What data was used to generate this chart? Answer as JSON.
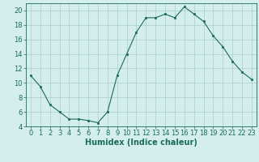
{
  "x": [
    0,
    1,
    2,
    3,
    4,
    5,
    6,
    7,
    8,
    9,
    10,
    11,
    12,
    13,
    14,
    15,
    16,
    17,
    18,
    19,
    20,
    21,
    22,
    23
  ],
  "y": [
    11,
    9.5,
    7,
    6,
    5,
    5,
    4.8,
    4.5,
    6,
    11,
    14,
    17,
    19,
    19,
    19.5,
    19,
    20.5,
    19.5,
    18.5,
    16.5,
    15,
    13,
    11.5,
    10.5
  ],
  "line_color": "#1a6b5a",
  "marker": "s",
  "marker_size": 2.0,
  "bg_color": "#d4eeee",
  "grid_color": "#aacccc",
  "xlabel": "Humidex (Indice chaleur)",
  "ylim": [
    4,
    21
  ],
  "xlim": [
    -0.5,
    23.5
  ],
  "yticks": [
    4,
    6,
    8,
    10,
    12,
    14,
    16,
    18,
    20
  ],
  "xticks": [
    0,
    1,
    2,
    3,
    4,
    5,
    6,
    7,
    8,
    9,
    10,
    11,
    12,
    13,
    14,
    15,
    16,
    17,
    18,
    19,
    20,
    21,
    22,
    23
  ],
  "tick_color": "#1a6b5a",
  "tick_fontsize": 6,
  "xlabel_fontsize": 7
}
